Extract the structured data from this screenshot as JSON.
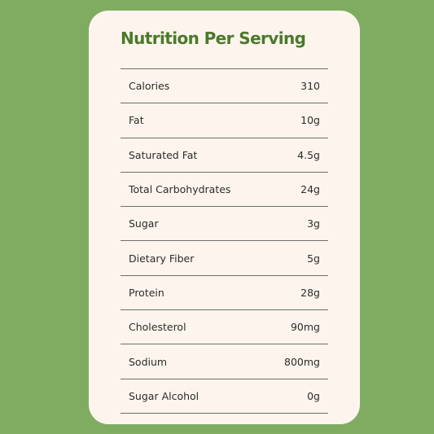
{
  "title": "Nutrition Per Serving",
  "rows": [
    {
      "label": "Calories",
      "value": "310"
    },
    {
      "label": "Fat",
      "value": "10g"
    },
    {
      "label": "Saturated Fat",
      "value": "4.5g"
    },
    {
      "label": "Total Carbohydrates",
      "value": "24g"
    },
    {
      "label": "Sugar",
      "value": "3g"
    },
    {
      "label": "Dietary Fiber",
      "value": "5g"
    },
    {
      "label": "Protein",
      "value": "28g"
    },
    {
      "label": "Cholesterol",
      "value": "90mg"
    },
    {
      "label": "Sodium",
      "value": "800mg"
    },
    {
      "label": "Sugar Alcohol",
      "value": "0g"
    }
  ],
  "colors": {
    "background": "#80ac62",
    "card": "#fdf5ed",
    "title": "#4a7a2a",
    "text": "#2b2b2b",
    "rule": "#6e6e6e"
  }
}
